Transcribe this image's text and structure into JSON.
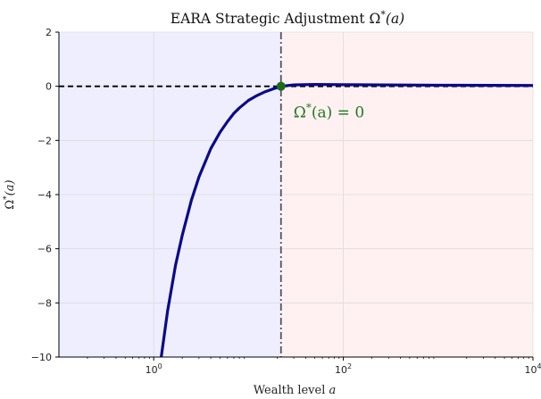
{
  "chart_data": {
    "type": "line",
    "title": "EARA Strategic Adjustment Ω*(a)",
    "title_parts": {
      "main": "EARA Strategic Adjustment Ω",
      "sup": "*",
      "tail": "(a)"
    },
    "xlabel": "Wealth level a",
    "xlabel_parts": {
      "main": "Wealth level ",
      "var": "a"
    },
    "ylabel": "Ω*(a)",
    "ylabel_parts": {
      "main": "Ω",
      "sup": "*",
      "tail": "(a)"
    },
    "x_scale": "log",
    "xlim": [
      0.1,
      10000
    ],
    "ylim": [
      -10,
      2
    ],
    "x_ticks": [
      {
        "value": 1,
        "base": "10",
        "exp": "0"
      },
      {
        "value": 100,
        "base": "10",
        "exp": "2"
      },
      {
        "value": 10000,
        "base": "10",
        "exp": "4"
      }
    ],
    "y_ticks": [
      {
        "value": 2,
        "label": "2"
      },
      {
        "value": 0,
        "label": "0"
      },
      {
        "value": -2,
        "label": "−2"
      },
      {
        "value": -4,
        "label": "−4"
      },
      {
        "value": -6,
        "label": "−6"
      },
      {
        "value": -8,
        "label": "−8"
      },
      {
        "value": -10,
        "label": "−10"
      }
    ],
    "grid": true,
    "series": [
      {
        "color": "#0a0a8a",
        "x": [
          1.2,
          1.4,
          1.7,
          2,
          2.5,
          3,
          4,
          5,
          6,
          7,
          8,
          10,
          12,
          15,
          18,
          22,
          30,
          50,
          100,
          1000,
          10000
        ],
        "y": [
          -10,
          -8.3,
          -6.6,
          -5.5,
          -4.2,
          -3.35,
          -2.3,
          -1.7,
          -1.3,
          -1.0,
          -0.8,
          -0.52,
          -0.36,
          -0.2,
          -0.1,
          0.0,
          0.05,
          0.07,
          0.06,
          0.04,
          0.03
        ]
      }
    ],
    "reference_lines": [
      {
        "type": "horizontal",
        "y": 0,
        "style": "dashed",
        "color": "#000000"
      },
      {
        "type": "vertical",
        "x": 22,
        "style": "dashdot",
        "color": "#555555"
      }
    ],
    "shaded_regions": [
      {
        "x_from": 0.1,
        "x_to": 22,
        "color": "#e8e8ff"
      },
      {
        "x_from": 22,
        "x_to": 10000,
        "color": "#ffecec"
      }
    ],
    "marker": {
      "x": 22,
      "y": 0,
      "color": "#1a6b1a"
    },
    "annotation": {
      "text": "Ω*(a) = 0",
      "parts": {
        "main": "Ω",
        "sup": "*",
        "tail": "(a) = 0"
      },
      "x": 24,
      "y": -0.95,
      "color": "#1f7a1f"
    }
  }
}
